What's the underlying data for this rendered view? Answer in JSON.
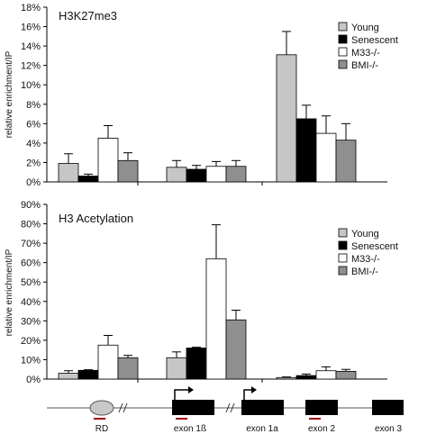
{
  "chart_data": [
    {
      "type": "bar",
      "title": "H3K27me3",
      "ylabel": "relative enrichment/IP",
      "ylim": [
        0,
        18
      ],
      "yticks": [
        "0%",
        "2%",
        "4%",
        "6%",
        "8%",
        "10%",
        "12%",
        "14%",
        "16%",
        "18%"
      ],
      "legend_position": "top-right",
      "groups": [
        "RD",
        "exon 1ß",
        "exon 2"
      ],
      "series": [
        {
          "name": "Young",
          "color": "#c6c6c6",
          "values": [
            1.9,
            1.5,
            13.1
          ],
          "errors": [
            1.0,
            0.7,
            2.4
          ]
        },
        {
          "name": "Senescent",
          "color": "#000000",
          "values": [
            0.6,
            1.3,
            6.5
          ],
          "errors": [
            0.2,
            0.4,
            1.4
          ]
        },
        {
          "name": "M33-/-",
          "color": "#ffffff",
          "values": [
            4.5,
            1.6,
            5.0
          ],
          "errors": [
            1.3,
            0.5,
            1.8
          ]
        },
        {
          "name": "BMI-/-",
          "color": "#8f8f8f",
          "values": [
            2.2,
            1.6,
            4.3
          ],
          "errors": [
            0.8,
            0.6,
            1.7
          ]
        }
      ]
    },
    {
      "type": "bar",
      "title": "H3 Acetylation",
      "ylabel": "relative enrichment/IP",
      "ylim": [
        0,
        90
      ],
      "yticks": [
        "0%",
        "10%",
        "20%",
        "30%",
        "40%",
        "50%",
        "60%",
        "70%",
        "80%",
        "90%"
      ],
      "legend_position": "top-right",
      "groups": [
        "RD",
        "exon 1ß",
        "exon 2"
      ],
      "series": [
        {
          "name": "Young",
          "color": "#c6c6c6",
          "values": [
            3,
            11,
            0.8
          ],
          "errors": [
            1.3,
            3.0,
            0.3
          ]
        },
        {
          "name": "Senescent",
          "color": "#000000",
          "values": [
            4.5,
            16,
            1.8
          ],
          "errors": [
            0.3,
            0.4,
            0.8
          ]
        },
        {
          "name": "M33-/-",
          "color": "#ffffff",
          "values": [
            17.5,
            62,
            4.3
          ],
          "errors": [
            5.0,
            17.5,
            2.0
          ]
        },
        {
          "name": "BMI-/-",
          "color": "#8f8f8f",
          "values": [
            11,
            30.5,
            4.0
          ],
          "errors": [
            1.2,
            5.0,
            1.0
          ]
        }
      ]
    }
  ],
  "gene_map": {
    "labels": [
      "RD",
      "exon 1ß",
      "exon 1a",
      "exon 2",
      "exon 3"
    ],
    "marker_color": "#cc0000"
  }
}
